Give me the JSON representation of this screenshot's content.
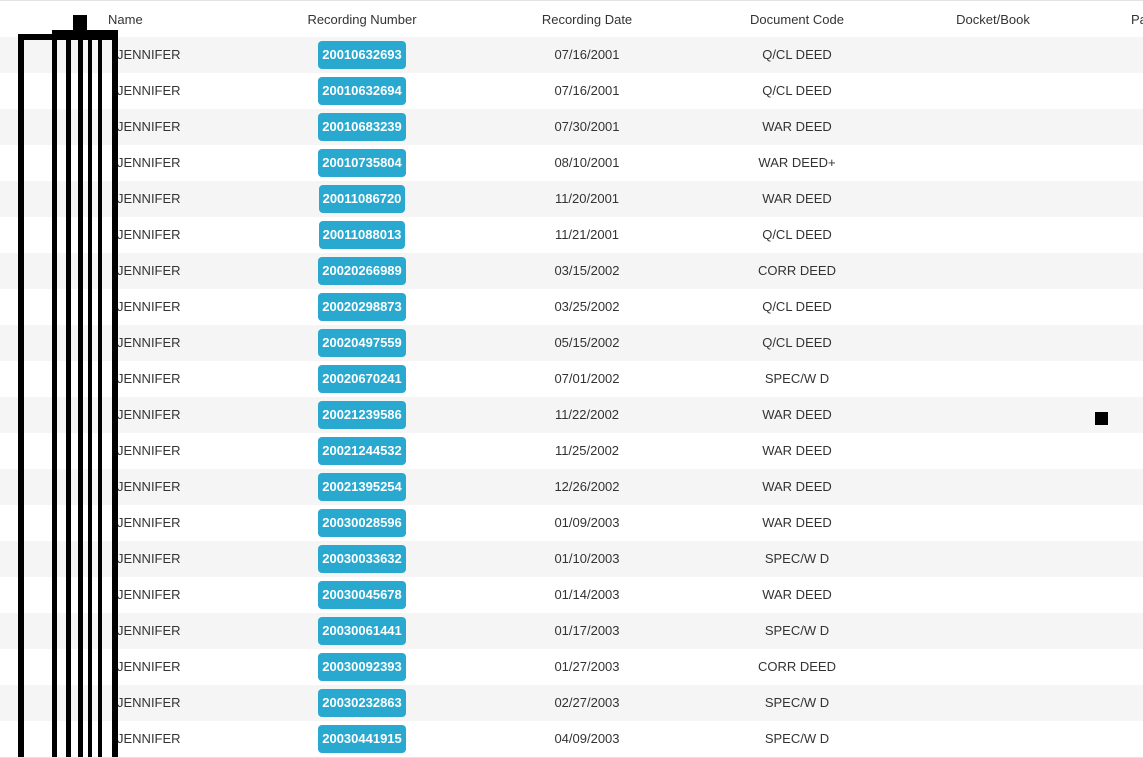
{
  "table": {
    "headers": {
      "name": "Name",
      "recording_number": "Recording Number",
      "recording_date": "Recording Date",
      "document_code": "Document Code",
      "docket_book": "Docket/Book",
      "page": "Pa"
    },
    "rows": [
      {
        "name": "JENNIFER",
        "recording_number": "20010632693",
        "recording_date": "07/16/2001",
        "document_code": "Q/CL DEED"
      },
      {
        "name": "JENNIFER",
        "recording_number": "20010632694",
        "recording_date": "07/16/2001",
        "document_code": "Q/CL DEED"
      },
      {
        "name": "JENNIFER",
        "recording_number": "20010683239",
        "recording_date": "07/30/2001",
        "document_code": "WAR DEED"
      },
      {
        "name": "JENNIFER",
        "recording_number": "20010735804",
        "recording_date": "08/10/2001",
        "document_code": "WAR DEED+"
      },
      {
        "name": "JENNIFER",
        "recording_number": "20011086720",
        "recording_date": "11/20/2001",
        "document_code": "WAR DEED"
      },
      {
        "name": "JENNIFER",
        "recording_number": "20011088013",
        "recording_date": "11/21/2001",
        "document_code": "Q/CL DEED"
      },
      {
        "name": "JENNIFER",
        "recording_number": "20020266989",
        "recording_date": "03/15/2002",
        "document_code": "CORR DEED"
      },
      {
        "name": "JENNIFER",
        "recording_number": "20020298873",
        "recording_date": "03/25/2002",
        "document_code": "Q/CL DEED"
      },
      {
        "name": "JENNIFER",
        "recording_number": "20020497559",
        "recording_date": "05/15/2002",
        "document_code": "Q/CL DEED"
      },
      {
        "name": "JENNIFER",
        "recording_number": "20020670241",
        "recording_date": "07/01/2002",
        "document_code": "SPEC/W D"
      },
      {
        "name": "JENNIFER",
        "recording_number": "20021239586",
        "recording_date": "11/22/2002",
        "document_code": "WAR DEED"
      },
      {
        "name": "JENNIFER",
        "recording_number": "20021244532",
        "recording_date": "11/25/2002",
        "document_code": "WAR DEED"
      },
      {
        "name": "JENNIFER",
        "recording_number": "20021395254",
        "recording_date": "12/26/2002",
        "document_code": "WAR DEED"
      },
      {
        "name": "JENNIFER",
        "recording_number": "20030028596",
        "recording_date": "01/09/2003",
        "document_code": "WAR DEED"
      },
      {
        "name": "JENNIFER",
        "recording_number": "20030033632",
        "recording_date": "01/10/2003",
        "document_code": "SPEC/W D"
      },
      {
        "name": "JENNIFER",
        "recording_number": "20030045678",
        "recording_date": "01/14/2003",
        "document_code": "WAR DEED"
      },
      {
        "name": "JENNIFER",
        "recording_number": "20030061441",
        "recording_date": "01/17/2003",
        "document_code": "SPEC/W D"
      },
      {
        "name": "JENNIFER",
        "recording_number": "20030092393",
        "recording_date": "01/27/2003",
        "document_code": "CORR DEED"
      },
      {
        "name": "JENNIFER",
        "recording_number": "20030232863",
        "recording_date": "02/27/2003",
        "document_code": "SPEC/W D"
      },
      {
        "name": "JENNIFER",
        "recording_number": "20030441915",
        "recording_date": "04/09/2003",
        "document_code": "SPEC/W D"
      }
    ]
  },
  "colors": {
    "recording_button": "#29a9cf",
    "row_stripe": "#f5f5f5",
    "redaction": "#000000"
  }
}
